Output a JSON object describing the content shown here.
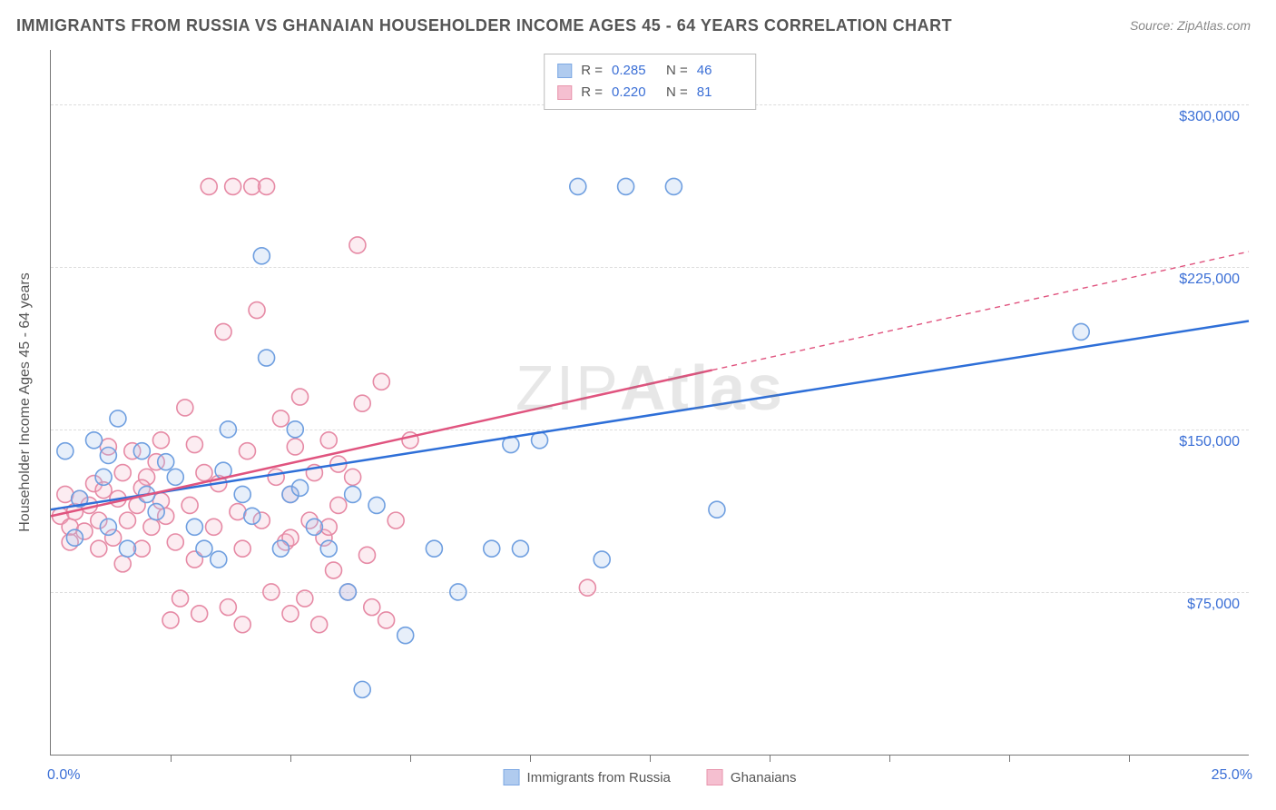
{
  "title": "IMMIGRANTS FROM RUSSIA VS GHANAIAN HOUSEHOLDER INCOME AGES 45 - 64 YEARS CORRELATION CHART",
  "source_label": "Source: ",
  "source_name": "ZipAtlas.com",
  "watermark_thin": "ZIP",
  "watermark_bold": "Atlas",
  "ylabel": "Householder Income Ages 45 - 64 years",
  "chart": {
    "type": "scatter",
    "background_color": "#ffffff",
    "grid_color": "#dddddd",
    "grid_dash": "4,4",
    "axis_color": "#777777",
    "axis_label_color": "#555555",
    "tick_label_color": "#3b6fd6",
    "tick_label_fontsize": 16,
    "title_fontsize": 18,
    "label_fontsize": 16,
    "marker_radius": 9,
    "marker_stroke_width": 1.6,
    "marker_fill_opacity": 0.28,
    "trend_line_width": 2.5,
    "trend_dash_pattern": "6,5",
    "xlim": [
      0,
      25
    ],
    "ylim": [
      0,
      325000
    ],
    "xtick_positions": [
      2.5,
      5,
      7.5,
      10,
      12.5,
      15,
      17.5,
      20,
      22.5
    ],
    "ytick_values": [
      75000,
      150000,
      225000,
      300000
    ],
    "ytick_labels": [
      "$75,000",
      "$150,000",
      "$225,000",
      "$300,000"
    ],
    "xlim_labels": [
      "0.0%",
      "25.0%"
    ]
  },
  "series": [
    {
      "id": "russia",
      "label": "Immigrants from Russia",
      "color_stroke": "#6f9fe0",
      "color_fill": "#a8c6ee",
      "R": "0.285",
      "N": "46",
      "trend": {
        "x1": 0,
        "y1": 113000,
        "x2": 25,
        "y2": 200000,
        "solid_until_x": 25
      },
      "points": [
        [
          0.3,
          140000
        ],
        [
          0.6,
          118000
        ],
        [
          0.9,
          145000
        ],
        [
          0.5,
          100000
        ],
        [
          1.1,
          128000
        ],
        [
          1.2,
          138000
        ],
        [
          1.4,
          155000
        ],
        [
          1.6,
          95000
        ],
        [
          1.2,
          105000
        ],
        [
          1.9,
          140000
        ],
        [
          2.0,
          120000
        ],
        [
          2.2,
          112000
        ],
        [
          2.4,
          135000
        ],
        [
          2.6,
          128000
        ],
        [
          3.6,
          131000
        ],
        [
          3.0,
          105000
        ],
        [
          3.2,
          95000
        ],
        [
          3.5,
          90000
        ],
        [
          3.7,
          150000
        ],
        [
          4.0,
          120000
        ],
        [
          4.2,
          110000
        ],
        [
          4.4,
          230000
        ],
        [
          4.5,
          183000
        ],
        [
          4.8,
          95000
        ],
        [
          5.0,
          120000
        ],
        [
          5.1,
          150000
        ],
        [
          5.2,
          123000
        ],
        [
          5.5,
          105000
        ],
        [
          5.8,
          95000
        ],
        [
          6.3,
          120000
        ],
        [
          6.2,
          75000
        ],
        [
          6.5,
          30000
        ],
        [
          6.8,
          115000
        ],
        [
          7.4,
          55000
        ],
        [
          8.0,
          95000
        ],
        [
          8.5,
          75000
        ],
        [
          9.2,
          95000
        ],
        [
          9.8,
          95000
        ],
        [
          10.2,
          145000
        ],
        [
          11.0,
          262000
        ],
        [
          11.5,
          90000
        ],
        [
          12.0,
          262000
        ],
        [
          13.0,
          262000
        ],
        [
          13.9,
          113000
        ],
        [
          21.5,
          195000
        ],
        [
          9.6,
          143000
        ]
      ]
    },
    {
      "id": "ghana",
      "label": "Ghanians",
      "legend_label": "Ghanaians",
      "color_stroke": "#e68aa5",
      "color_fill": "#f4b9cb",
      "R": "0.220",
      "N": "81",
      "trend": {
        "x1": 0,
        "y1": 110000,
        "x2": 25,
        "y2": 232000,
        "solid_until_x": 13.8
      },
      "points": [
        [
          0.2,
          110000
        ],
        [
          0.3,
          120000
        ],
        [
          0.4,
          105000
        ],
        [
          0.4,
          98000
        ],
        [
          0.5,
          112000
        ],
        [
          0.6,
          118000
        ],
        [
          0.7,
          103000
        ],
        [
          0.8,
          115000
        ],
        [
          0.9,
          125000
        ],
        [
          1.0,
          108000
        ],
        [
          1.0,
          95000
        ],
        [
          1.1,
          122000
        ],
        [
          1.2,
          142000
        ],
        [
          1.3,
          100000
        ],
        [
          1.4,
          118000
        ],
        [
          1.5,
          130000
        ],
        [
          1.5,
          88000
        ],
        [
          1.6,
          108000
        ],
        [
          1.7,
          140000
        ],
        [
          1.8,
          115000
        ],
        [
          1.9,
          95000
        ],
        [
          2.0,
          128000
        ],
        [
          2.1,
          105000
        ],
        [
          2.2,
          135000
        ],
        [
          2.4,
          110000
        ],
        [
          2.5,
          62000
        ],
        [
          2.6,
          98000
        ],
        [
          2.7,
          72000
        ],
        [
          2.8,
          160000
        ],
        [
          2.9,
          115000
        ],
        [
          3.0,
          90000
        ],
        [
          3.1,
          65000
        ],
        [
          3.2,
          130000
        ],
        [
          3.3,
          262000
        ],
        [
          3.4,
          105000
        ],
        [
          3.5,
          125000
        ],
        [
          3.6,
          195000
        ],
        [
          3.7,
          68000
        ],
        [
          3.8,
          262000
        ],
        [
          3.9,
          112000
        ],
        [
          4.0,
          95000
        ],
        [
          4.1,
          140000
        ],
        [
          4.2,
          262000
        ],
        [
          4.3,
          205000
        ],
        [
          4.4,
          108000
        ],
        [
          4.5,
          262000
        ],
        [
          4.6,
          75000
        ],
        [
          4.7,
          128000
        ],
        [
          4.8,
          155000
        ],
        [
          4.9,
          98000
        ],
        [
          5.0,
          120000
        ],
        [
          5.1,
          142000
        ],
        [
          5.2,
          165000
        ],
        [
          5.3,
          72000
        ],
        [
          5.4,
          108000
        ],
        [
          5.5,
          130000
        ],
        [
          5.6,
          60000
        ],
        [
          5.7,
          100000
        ],
        [
          5.8,
          145000
        ],
        [
          5.9,
          85000
        ],
        [
          6.0,
          115000
        ],
        [
          6.2,
          75000
        ],
        [
          6.3,
          128000
        ],
        [
          6.5,
          162000
        ],
        [
          6.7,
          68000
        ],
        [
          6.9,
          172000
        ],
        [
          7.2,
          108000
        ],
        [
          7.5,
          145000
        ],
        [
          6.4,
          235000
        ],
        [
          6.6,
          92000
        ],
        [
          7.0,
          62000
        ],
        [
          5.0,
          65000
        ],
        [
          4.0,
          60000
        ],
        [
          2.3,
          145000
        ],
        [
          1.9,
          123000
        ],
        [
          2.3,
          117000
        ],
        [
          5.8,
          105000
        ],
        [
          6.0,
          134000
        ],
        [
          5.0,
          100000
        ],
        [
          3.0,
          143000
        ],
        [
          11.2,
          77000
        ]
      ]
    }
  ],
  "legend_stats_labels": {
    "R": "R =",
    "N": "N ="
  }
}
